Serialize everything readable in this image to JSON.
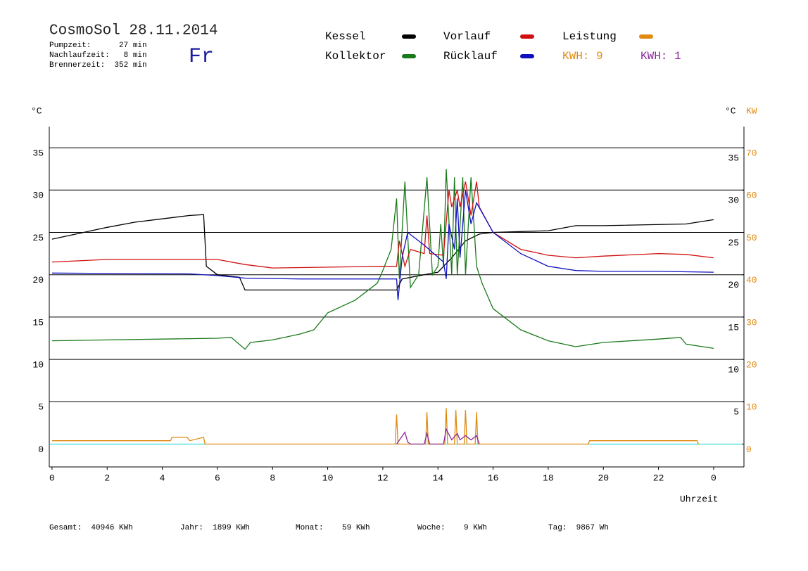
{
  "chart_data": {
    "type": "line",
    "title": "CosmoSol 28.11.2014",
    "info": [
      "Pumpzeit:      27 min",
      "Nachlaufzeit:   8 min",
      "Brennerzeit:  352 min"
    ],
    "weekday": "Fr",
    "y_label": "°C",
    "y2_label_c": "°C",
    "y2_label": "KW",
    "x_label": "Uhrzeit",
    "kwh_labels": [
      {
        "text": "KWH: 9",
        "color": "#e08a10"
      },
      {
        "text": "KWH: 1",
        "color": "#8a2a9a"
      }
    ],
    "footer": [
      "Gesamt:  40946 KWh",
      "Jahr:  1899 KWh",
      "Monat:    59 KWh",
      "Woche:    9 KWh",
      "Tag:  9867 Wh"
    ],
    "xlim": [
      -0.1,
      25.1
    ],
    "xticks": [
      0,
      2,
      4,
      6,
      8,
      10,
      12,
      14,
      16,
      18,
      20,
      22,
      {
        "value": 24,
        "label": "0"
      }
    ],
    "ylim": [
      -2.7,
      37.5
    ],
    "yticks": [
      0,
      5,
      10,
      15,
      20,
      25,
      30,
      35
    ],
    "yticks_right": [
      5,
      10,
      15,
      20,
      25,
      30,
      35
    ],
    "y2lim": [
      -5.4,
      75
    ],
    "y2ticks": [
      0,
      10,
      20,
      30,
      40,
      50,
      60,
      70
    ],
    "grid": true,
    "series": [
      {
        "name": "Kessel",
        "color": "#000000",
        "x": [
          0,
          1,
          2,
          3,
          4,
          5,
          5.5,
          5.6,
          6,
          6.8,
          7.0,
          9,
          12.5,
          12.7,
          13.5,
          14,
          14.5,
          15,
          15.5,
          16,
          18,
          19,
          20,
          23,
          24
        ],
        "values": [
          24.2,
          24.9,
          25.6,
          26.2,
          26.6,
          27.0,
          27.1,
          21.0,
          20.0,
          19.7,
          18.2,
          18.2,
          18.2,
          19.5,
          20.0,
          20.3,
          22,
          24,
          24.8,
          25,
          25.2,
          25.8,
          25.8,
          26.0,
          26.5
        ]
      },
      {
        "name": "Kollektor",
        "color": "#1a7a1a",
        "x": [
          0,
          6,
          6.5,
          7,
          7.2,
          8,
          9,
          9.5,
          10,
          11,
          11.8,
          12,
          12.3,
          12.5,
          12.6,
          12.8,
          13,
          13.3,
          13.6,
          13.8,
          14,
          14.1,
          14.2,
          14.3,
          14.5,
          14.6,
          14.7,
          14.9,
          15,
          15.2,
          15.4,
          15.6,
          16,
          17,
          18,
          19,
          20,
          22,
          22.8,
          23,
          24
        ],
        "values": [
          12.2,
          12.5,
          12.6,
          11.2,
          12.0,
          12.3,
          13,
          13.5,
          15.5,
          17,
          19,
          20.5,
          23,
          29,
          19.5,
          31,
          18.5,
          20,
          31.5,
          20,
          21,
          26,
          21,
          32.5,
          20,
          31.5,
          20,
          31.5,
          20,
          31.5,
          21,
          19,
          16,
          13.5,
          12.2,
          11.5,
          12.0,
          12.4,
          12.6,
          11.8,
          11.3
        ]
      },
      {
        "name": "Vorlauf",
        "color": "#d01010",
        "x": [
          0,
          2,
          6,
          7,
          8,
          12,
          12.5,
          12.6,
          12.8,
          13,
          13.5,
          13.6,
          13.7,
          14.2,
          14.4,
          14.5,
          14.7,
          14.8,
          15,
          15.2,
          15.4,
          15.5,
          16,
          17,
          18,
          19,
          20,
          22,
          23,
          24
        ],
        "values": [
          21.5,
          21.8,
          21.8,
          21.2,
          20.8,
          21,
          21,
          24,
          21,
          23,
          22.5,
          27,
          22.5,
          22.3,
          30,
          28,
          30,
          28,
          31,
          27,
          31,
          28,
          25,
          23,
          22.3,
          22,
          22.2,
          22.5,
          22.4,
          22
        ]
      },
      {
        "name": "Rücklauf",
        "color": "#1010c0",
        "x": [
          0,
          5,
          6,
          7,
          9,
          12.5,
          12.55,
          12.7,
          12.9,
          13.5,
          14.2,
          14.3,
          14.4,
          14.6,
          14.7,
          14.8,
          15,
          15.2,
          15.4,
          16,
          17,
          18,
          19,
          20,
          22,
          24
        ],
        "values": [
          20.2,
          20.1,
          19.9,
          19.6,
          19.5,
          19.5,
          17,
          22,
          25,
          23.5,
          21.5,
          19.5,
          26,
          23,
          29,
          22,
          30,
          26,
          28.5,
          25,
          22.5,
          21,
          20.5,
          20.4,
          20.4,
          20.3
        ]
      },
      {
        "name": "Leistung",
        "color": "#e08a10",
        "axis": "y2",
        "x": [
          0,
          4.3,
          4.35,
          4.9,
          5.0,
          5.5,
          5.55,
          12.45,
          12.5,
          12.55,
          13.55,
          13.6,
          13.65,
          14.25,
          14.3,
          14.35,
          14.6,
          14.65,
          14.7,
          14.95,
          15.0,
          15.05,
          15.35,
          15.4,
          15.45,
          19.45,
          19.5,
          23.4,
          23.45
        ],
        "values": [
          0.8,
          0.8,
          1.6,
          1.6,
          0.8,
          1.6,
          0,
          0,
          7,
          0,
          0,
          7.5,
          0,
          0,
          8.5,
          0,
          0,
          8,
          0,
          0,
          8,
          0,
          0,
          7.5,
          0,
          0,
          0.8,
          0.8,
          0
        ]
      },
      {
        "color": "#8a2a9a",
        "axis": "y2",
        "x": [
          12.5,
          12.8,
          12.9,
          13.0,
          13.5,
          13.6,
          13.7,
          14.2,
          14.3,
          14.5,
          14.7,
          14.8,
          15.0,
          15.2,
          15.4,
          15.5
        ],
        "values": [
          0,
          2.8,
          0.5,
          0,
          0,
          2.5,
          0,
          0,
          3.5,
          1,
          2.5,
          1,
          2,
          1,
          2,
          0
        ]
      }
    ]
  }
}
